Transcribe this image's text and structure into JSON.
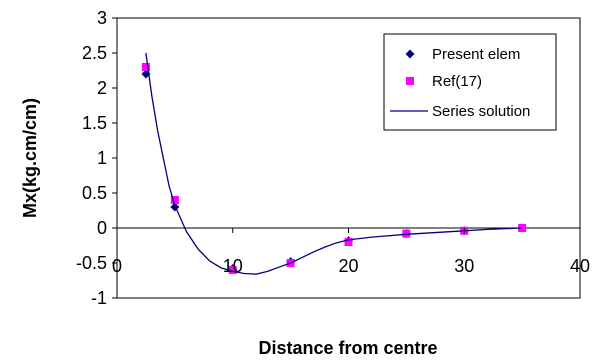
{
  "chart_data": {
    "type": "scatter",
    "title": "",
    "xlabel": "Distance from centre",
    "ylabel": "Mx(kg.cm/cm)",
    "xlim": [
      0,
      40
    ],
    "ylim": [
      -1,
      3
    ],
    "x_ticks": [
      "0",
      "10",
      "20",
      "30",
      "40"
    ],
    "y_ticks": [
      "-1",
      "-0.5",
      "0",
      "0.5",
      "1",
      "1.5",
      "2",
      "2.5",
      "3"
    ],
    "grid": false,
    "legend_position": "top-right",
    "series": [
      {
        "name": "Present elem",
        "marker": "diamond",
        "color": "#000080",
        "x": [
          2.5,
          5,
          10,
          15,
          20,
          25,
          30,
          35
        ],
        "y": [
          2.2,
          0.3,
          -0.58,
          -0.48,
          -0.18,
          -0.08,
          -0.04,
          0.0
        ]
      },
      {
        "name": "Ref(17)",
        "marker": "square",
        "color": "#FF00FF",
        "x": [
          2.5,
          5,
          10,
          15,
          20,
          25,
          30,
          35
        ],
        "y": [
          2.3,
          0.4,
          -0.6,
          -0.5,
          -0.2,
          -0.08,
          -0.04,
          0.0
        ]
      },
      {
        "name": "Series solution",
        "marker": "line",
        "color": "#000080",
        "x": [
          2.5,
          3,
          3.5,
          4,
          4.5,
          5,
          6,
          7,
          8,
          9,
          10,
          11,
          12,
          13,
          14,
          15,
          16,
          17,
          18,
          19,
          20,
          22,
          25,
          28,
          30,
          32,
          35
        ],
        "y": [
          2.5,
          1.9,
          1.4,
          1.0,
          0.6,
          0.32,
          -0.05,
          -0.3,
          -0.47,
          -0.57,
          -0.62,
          -0.65,
          -0.66,
          -0.62,
          -0.56,
          -0.5,
          -0.42,
          -0.34,
          -0.27,
          -0.21,
          -0.17,
          -0.13,
          -0.09,
          -0.06,
          -0.04,
          -0.02,
          0.0
        ]
      }
    ]
  }
}
